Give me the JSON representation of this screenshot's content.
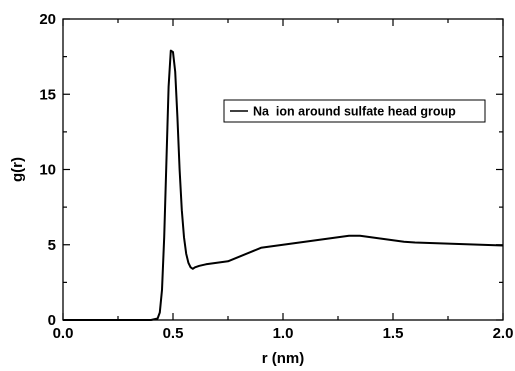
{
  "chart_data": {
    "type": "line",
    "xlabel": "r (nm)",
    "ylabel": "g(r)",
    "xlim": [
      0.0,
      2.0
    ],
    "ylim": [
      0,
      20
    ],
    "x_ticks": [
      0.0,
      0.5,
      1.0,
      1.5,
      2.0
    ],
    "x_tick_labels": [
      "0.0",
      "0.5",
      "1.0",
      "1.5",
      "2.0"
    ],
    "y_ticks": [
      0,
      5,
      10,
      15,
      20
    ],
    "y_tick_labels": [
      "0",
      "5",
      "10",
      "15",
      "20"
    ],
    "grid": false,
    "legend_position": "upper-right",
    "series": [
      {
        "name": "Na  ion around sulfate head group",
        "color": "#000000",
        "x": [
          0.0,
          0.4,
          0.43,
          0.44,
          0.45,
          0.46,
          0.47,
          0.48,
          0.49,
          0.5,
          0.51,
          0.52,
          0.53,
          0.54,
          0.55,
          0.56,
          0.57,
          0.58,
          0.59,
          0.6,
          0.62,
          0.65,
          0.7,
          0.75,
          0.8,
          0.85,
          0.9,
          0.95,
          1.0,
          1.05,
          1.1,
          1.15,
          1.2,
          1.25,
          1.3,
          1.35,
          1.4,
          1.45,
          1.5,
          1.55,
          1.6,
          1.7,
          1.8,
          1.9,
          2.0
        ],
        "values": [
          0.0,
          0.0,
          0.1,
          0.5,
          2.0,
          5.5,
          10.5,
          15.5,
          17.9,
          17.8,
          16.5,
          13.5,
          10.0,
          7.3,
          5.5,
          4.4,
          3.8,
          3.5,
          3.4,
          3.5,
          3.6,
          3.7,
          3.8,
          3.9,
          4.2,
          4.5,
          4.8,
          4.9,
          5.0,
          5.1,
          5.2,
          5.3,
          5.4,
          5.5,
          5.6,
          5.6,
          5.5,
          5.4,
          5.3,
          5.2,
          5.15,
          5.1,
          5.05,
          5.0,
          4.95
        ]
      }
    ]
  }
}
